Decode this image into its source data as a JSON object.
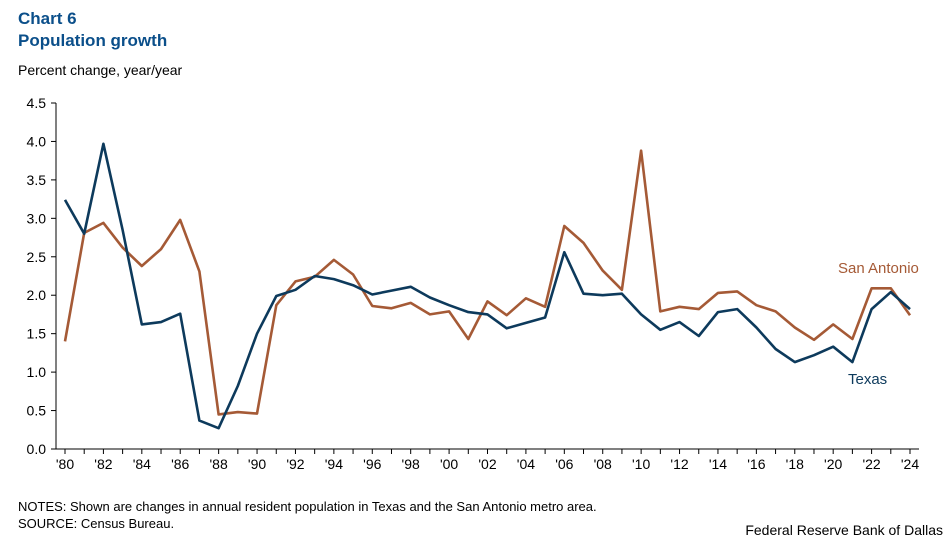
{
  "header": {
    "chart_number": "Chart 6",
    "title": "Population growth",
    "y_axis_label": "Percent change, year/year"
  },
  "footer": {
    "notes": "NOTES: Shown are changes in annual resident population in Texas and the San Antonio metro area.",
    "source": "SOURCE: Census Bureau.",
    "credit": "Federal Reserve Bank of Dallas"
  },
  "colors": {
    "texas": "#0d3a5c",
    "san_antonio": "#a55a36"
  },
  "chart_data": {
    "type": "line",
    "title": "Population growth",
    "ylabel": "Percent change, year/year",
    "xlabel": "",
    "ylim": [
      0.0,
      4.5
    ],
    "yticks": [
      "0.0",
      "0.5",
      "1.0",
      "1.5",
      "2.0",
      "2.5",
      "3.0",
      "3.5",
      "4.0",
      "4.5"
    ],
    "x": [
      1980,
      1981,
      1982,
      1983,
      1984,
      1985,
      1986,
      1987,
      1988,
      1989,
      1990,
      1991,
      1992,
      1993,
      1994,
      1995,
      1996,
      1997,
      1998,
      1999,
      2000,
      2001,
      2002,
      2003,
      2004,
      2005,
      2006,
      2007,
      2008,
      2009,
      2010,
      2011,
      2012,
      2013,
      2014,
      2015,
      2016,
      2017,
      2018,
      2019,
      2020,
      2021,
      2022,
      2023,
      2024
    ],
    "xticks": [
      "'80",
      "'82",
      "'84",
      "'86",
      "'88",
      "'90",
      "'92",
      "'94",
      "'96",
      "'98",
      "'00",
      "'02",
      "'04",
      "'06",
      "'08",
      "'10",
      "'12",
      "'14",
      "'16",
      "'18",
      "'20",
      "'22",
      "'24"
    ],
    "grid": false,
    "series": [
      {
        "name": "Texas",
        "values": [
          3.24,
          2.8,
          3.97,
          2.85,
          1.62,
          1.65,
          1.76,
          0.37,
          0.27,
          0.82,
          1.5,
          1.99,
          2.07,
          2.25,
          2.21,
          2.13,
          2.01,
          2.06,
          2.11,
          1.97,
          1.87,
          1.78,
          1.75,
          1.57,
          1.64,
          1.71,
          2.56,
          2.02,
          2.0,
          2.02,
          1.75,
          1.55,
          1.65,
          1.47,
          1.78,
          1.82,
          1.58,
          1.3,
          1.13,
          1.22,
          1.33,
          1.13,
          1.82,
          2.04,
          1.82
        ]
      },
      {
        "name": "San Antonio",
        "values": [
          1.4,
          2.81,
          2.94,
          2.62,
          2.38,
          2.6,
          2.98,
          2.31,
          0.45,
          0.48,
          0.46,
          1.87,
          2.18,
          2.24,
          2.46,
          2.27,
          1.86,
          1.83,
          1.9,
          1.75,
          1.79,
          1.43,
          1.92,
          1.74,
          1.96,
          1.85,
          2.9,
          2.68,
          2.32,
          2.07,
          3.88,
          1.79,
          1.85,
          1.82,
          2.03,
          2.05,
          1.87,
          1.79,
          1.58,
          1.42,
          1.62,
          1.43,
          2.09,
          2.09,
          1.74
        ]
      }
    ]
  }
}
